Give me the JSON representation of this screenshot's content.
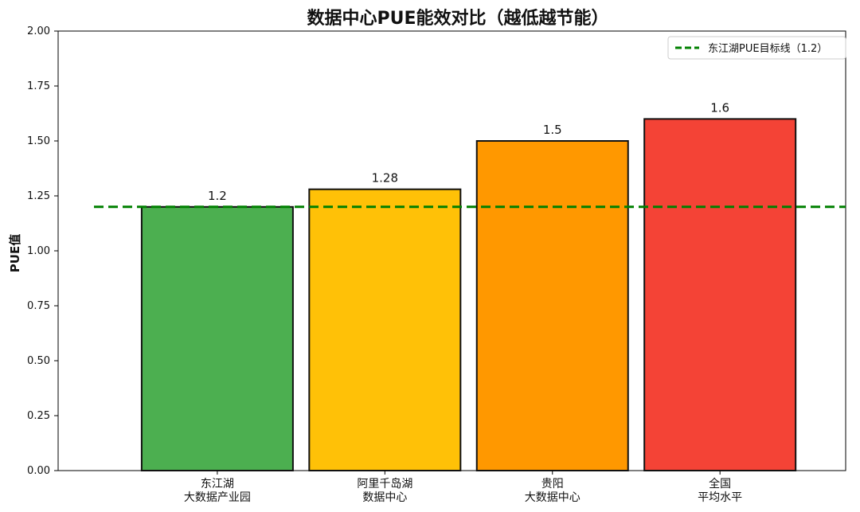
{
  "chart_data": {
    "type": "bar",
    "title": "数据中心PUE能效对比（越低越节能）",
    "xlabel": "",
    "ylabel": "PUE值",
    "ylim": [
      0,
      2.0
    ],
    "yticks": [
      0.0,
      0.25,
      0.5,
      0.75,
      1.0,
      1.25,
      1.5,
      1.75,
      2.0
    ],
    "ytick_labels": [
      "0.00",
      "0.25",
      "0.50",
      "0.75",
      "1.00",
      "1.25",
      "1.50",
      "1.75",
      "2.00"
    ],
    "categories": [
      [
        "东江湖",
        "大数据产业园"
      ],
      [
        "阿里千岛湖",
        "数据中心"
      ],
      [
        "贵阳",
        "大数据中心"
      ],
      [
        "全国",
        "平均水平"
      ]
    ],
    "values": [
      1.2,
      1.28,
      1.5,
      1.6
    ],
    "data_labels": [
      "1.2",
      "1.28",
      "1.5",
      "1.6"
    ],
    "bar_colors": [
      "#4caf50",
      "#ffc107",
      "#ff9800",
      "#f44336"
    ],
    "bar_edge_color": "#111111",
    "reference_line": {
      "value": 1.2,
      "label": "东江湖PUE目标线（1.2）",
      "color": "#008000",
      "style": "dashed"
    },
    "grid": false,
    "legend_position": "top-right"
  }
}
